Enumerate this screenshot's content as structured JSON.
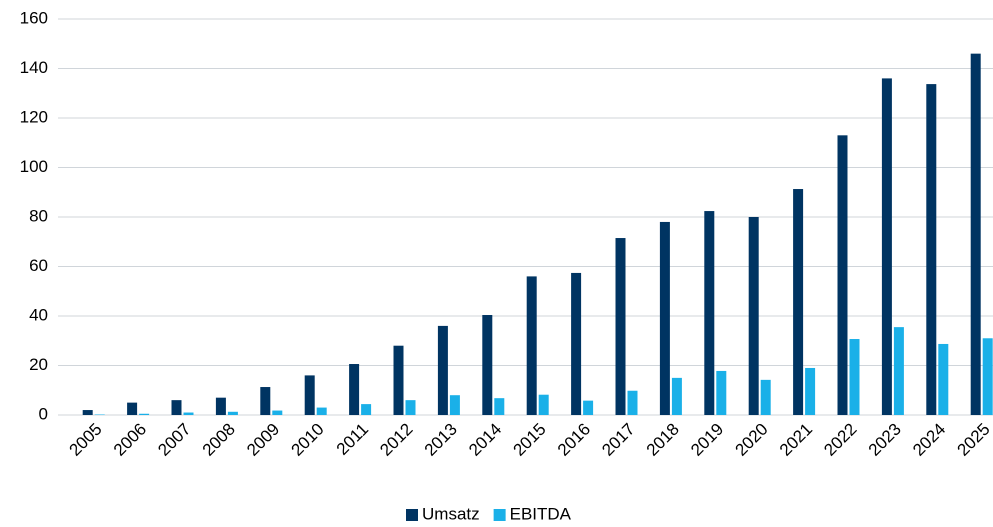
{
  "chart_data": {
    "type": "bar",
    "categories": [
      "2005",
      "2006",
      "2007",
      "2008",
      "2009",
      "2010",
      "2011",
      "2012",
      "2013",
      "2014",
      "2015",
      "2016",
      "2017",
      "2018",
      "2019",
      "2020",
      "2021",
      "2022",
      "2023",
      "2024",
      "2025"
    ],
    "series": [
      {
        "name": "Umsatz",
        "color": "#003462",
        "values": [
          2,
          5,
          6,
          7,
          11.3,
          16,
          20.6,
          28,
          36,
          40.4,
          56,
          57.4,
          71.5,
          78,
          82.4,
          80,
          91.3,
          113,
          136,
          133.7,
          146
        ]
      },
      {
        "name": "EBITDA",
        "color": "#1ab0e8",
        "values": [
          0.2,
          0.5,
          1,
          1.3,
          1.8,
          3,
          4.4,
          6,
          8,
          6.8,
          8.2,
          5.8,
          9.8,
          15,
          17.8,
          14.2,
          19,
          30.7,
          35.5,
          28.7,
          31
        ]
      }
    ],
    "ylim": [
      0,
      160
    ],
    "yticks": [
      0,
      20,
      40,
      60,
      80,
      100,
      120,
      140,
      160
    ],
    "grid": true,
    "legend": "bottom"
  }
}
